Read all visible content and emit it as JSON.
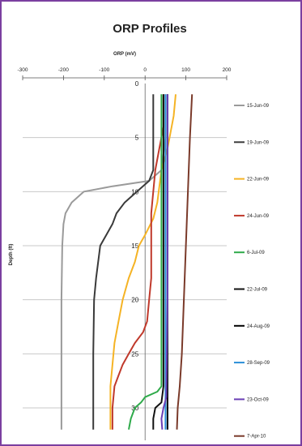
{
  "chart_data": {
    "type": "line",
    "title": "ORP Profiles",
    "xlabel": "ORP (mV)",
    "ylabel": "Depth (ft)",
    "xlim": [
      -300,
      200
    ],
    "ylim": [
      0,
      33
    ],
    "y_inverted": true,
    "x_axis_position": "top",
    "grid": "horizontal",
    "legend_position": "right",
    "xticks": [
      "-300",
      "-200",
      "-100",
      "0",
      "100",
      "200"
    ],
    "xtick_values": [
      -300,
      -200,
      -100,
      0,
      100,
      200
    ],
    "yticks": [
      "0",
      "5",
      "10",
      "15",
      "20",
      "25",
      "30"
    ],
    "ytick_values": [
      0,
      5,
      10,
      15,
      20,
      25,
      30
    ],
    "series": [
      {
        "name": "15-Jun-09",
        "color": "#9a9a9a",
        "points": [
          [
            50,
            1
          ],
          [
            50,
            5
          ],
          [
            40,
            8
          ],
          [
            10,
            9
          ],
          [
            -80,
            9.5
          ],
          [
            -150,
            10
          ],
          [
            -180,
            11
          ],
          [
            -195,
            12
          ],
          [
            -200,
            13
          ],
          [
            -203,
            15
          ],
          [
            -205,
            20
          ],
          [
            -205,
            25
          ],
          [
            -205,
            30
          ],
          [
            -205,
            32
          ]
        ]
      },
      {
        "name": "19-Jun-09",
        "color": "#3a3a3a",
        "points": [
          [
            20,
            1
          ],
          [
            20,
            5
          ],
          [
            20,
            8
          ],
          [
            10,
            9
          ],
          [
            -20,
            10
          ],
          [
            -50,
            11
          ],
          [
            -70,
            12
          ],
          [
            -80,
            13
          ],
          [
            -95,
            14
          ],
          [
            -110,
            15
          ],
          [
            -120,
            18
          ],
          [
            -125,
            20
          ],
          [
            -127,
            25
          ],
          [
            -127,
            30
          ],
          [
            -127,
            32
          ]
        ]
      },
      {
        "name": "22-Jun-09",
        "color": "#f5b324",
        "points": [
          [
            75,
            1
          ],
          [
            70,
            3
          ],
          [
            55,
            6
          ],
          [
            40,
            8
          ],
          [
            30,
            11
          ],
          [
            20,
            12.5
          ],
          [
            0,
            14
          ],
          [
            -15,
            15
          ],
          [
            -25,
            16.5
          ],
          [
            -40,
            18
          ],
          [
            -55,
            20
          ],
          [
            -65,
            22
          ],
          [
            -75,
            24
          ],
          [
            -80,
            26
          ],
          [
            -85,
            28
          ],
          [
            -85,
            30
          ],
          [
            -85,
            32
          ]
        ]
      },
      {
        "name": "24-Jun-09",
        "color": "#c0392b",
        "points": [
          [
            45,
            1
          ],
          [
            45,
            4
          ],
          [
            35,
            6
          ],
          [
            25,
            8
          ],
          [
            20,
            10
          ],
          [
            15,
            12
          ],
          [
            15,
            15
          ],
          [
            15,
            18
          ],
          [
            10,
            20
          ],
          [
            5,
            22
          ],
          [
            -5,
            23
          ],
          [
            -25,
            24
          ],
          [
            -40,
            25
          ],
          [
            -55,
            26
          ],
          [
            -65,
            27
          ],
          [
            -75,
            28
          ],
          [
            -80,
            30
          ],
          [
            -80,
            32
          ]
        ]
      },
      {
        "name": "6-Jul-09",
        "color": "#2eaa4a",
        "points": [
          [
            40,
            1
          ],
          [
            40,
            10
          ],
          [
            40,
            20
          ],
          [
            40,
            28
          ],
          [
            30,
            28.5
          ],
          [
            0,
            29
          ],
          [
            -10,
            29.5
          ],
          [
            -25,
            30
          ],
          [
            -35,
            31
          ],
          [
            -40,
            32
          ]
        ]
      },
      {
        "name": "22-Jul-09",
        "color": "#111111",
        "points": [
          [
            45,
            1
          ],
          [
            45,
            10
          ],
          [
            45,
            20
          ],
          [
            45,
            28
          ],
          [
            40,
            29.5
          ],
          [
            25,
            30
          ],
          [
            20,
            31
          ],
          [
            20,
            32
          ]
        ]
      },
      {
        "name": "24-Aug-09",
        "color": "#000000",
        "points": [
          [
            55,
            1
          ],
          [
            55,
            10
          ],
          [
            55,
            20
          ],
          [
            55,
            30
          ],
          [
            55,
            32
          ]
        ]
      },
      {
        "name": "28-Sep-09",
        "color": "#2a8fd8",
        "points": [
          [
            50,
            1
          ],
          [
            50,
            10
          ],
          [
            50,
            20
          ],
          [
            50,
            30
          ],
          [
            50,
            32
          ]
        ]
      },
      {
        "name": "23-Oct-09",
        "color": "#6a3fb5",
        "points": [
          [
            55,
            1
          ],
          [
            55,
            10
          ],
          [
            55,
            20
          ],
          [
            52,
            29
          ],
          [
            45,
            30
          ],
          [
            40,
            31
          ],
          [
            42,
            32
          ]
        ]
      },
      {
        "name": "7-Apr-10",
        "color": "#7a3a2a",
        "points": [
          [
            115,
            1
          ],
          [
            110,
            5
          ],
          [
            105,
            10
          ],
          [
            100,
            15
          ],
          [
            95,
            20
          ],
          [
            90,
            25
          ],
          [
            85,
            28
          ],
          [
            80,
            30
          ],
          [
            78,
            32
          ]
        ]
      }
    ]
  }
}
